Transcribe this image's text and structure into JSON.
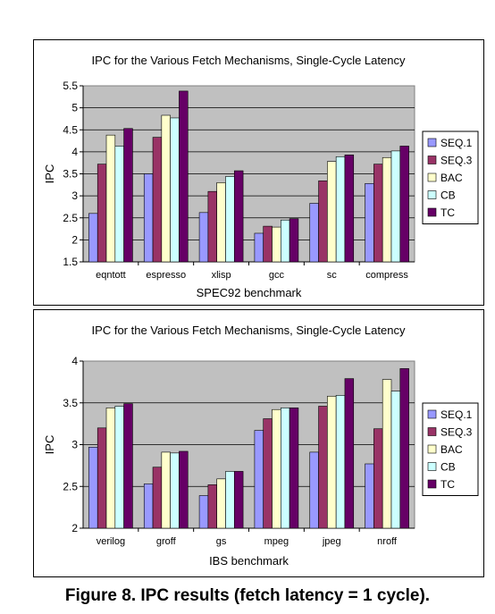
{
  "caption": "Figure 8. IPC results (fetch latency = 1 cycle).",
  "colors": {
    "plot_bg": "#c0c0c0",
    "series": [
      "#9999ff",
      "#993366",
      "#ffffcc",
      "#ccffff",
      "#660066"
    ]
  },
  "chart_data": [
    {
      "type": "bar",
      "title": "IPC for the Various Fetch Mechanisms, Single-Cycle Latency",
      "xlabel": "SPEC92 benchmark",
      "ylabel": "IPC",
      "ylim": [
        1.5,
        5.5
      ],
      "yticks": [
        "1.5",
        "2",
        "2.5",
        "3",
        "3.5",
        "4",
        "4.5",
        "5",
        "5.5"
      ],
      "grid": true,
      "legend_position": "right",
      "categories": [
        "eqntott",
        "espresso",
        "xlisp",
        "gcc",
        "sc",
        "compress"
      ],
      "series": [
        {
          "name": "SEQ.1",
          "values": [
            2.6,
            3.5,
            2.62,
            2.15,
            2.83,
            3.28
          ]
        },
        {
          "name": "SEQ.3",
          "values": [
            3.72,
            4.33,
            3.1,
            2.31,
            3.34,
            3.72
          ]
        },
        {
          "name": "BAC",
          "values": [
            4.38,
            4.83,
            3.3,
            2.29,
            3.78,
            3.87
          ]
        },
        {
          "name": "CB",
          "values": [
            4.13,
            4.77,
            3.44,
            2.45,
            3.89,
            4.02
          ]
        },
        {
          "name": "TC",
          "values": [
            4.53,
            5.38,
            3.57,
            2.48,
            3.93,
            4.13
          ]
        }
      ]
    },
    {
      "type": "bar",
      "title": "IPC for the Various Fetch Mechanisms, Single-Cycle Latency",
      "xlabel": "IBS benchmark",
      "ylabel": "IPC",
      "ylim": [
        2,
        4
      ],
      "yticks": [
        "2",
        "2.5",
        "3",
        "3.5",
        "4"
      ],
      "grid": true,
      "legend_position": "right",
      "categories": [
        "verilog",
        "groff",
        "gs",
        "mpeg",
        "jpeg",
        "nroff"
      ],
      "series": [
        {
          "name": "SEQ.1",
          "values": [
            2.97,
            2.53,
            2.39,
            3.17,
            2.91,
            2.77
          ]
        },
        {
          "name": "SEQ.3",
          "values": [
            3.2,
            2.73,
            2.52,
            3.31,
            3.46,
            3.19
          ]
        },
        {
          "name": "BAC",
          "values": [
            3.44,
            2.91,
            2.59,
            3.42,
            3.58,
            3.78
          ]
        },
        {
          "name": "CB",
          "values": [
            3.46,
            2.9,
            2.68,
            3.44,
            3.59,
            3.64
          ]
        },
        {
          "name": "TC",
          "values": [
            3.49,
            2.92,
            2.68,
            3.44,
            3.79,
            3.91
          ]
        }
      ]
    }
  ]
}
